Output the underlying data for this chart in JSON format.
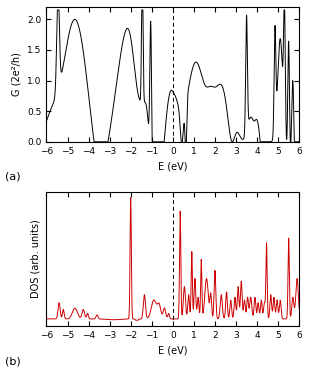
{
  "panel_a_label": "(a)",
  "panel_b_label": "(b)",
  "xlabel": "E (eV)",
  "ylabel_a": "G (2e²/h)",
  "ylabel_b": "DOS (arb. units)",
  "xlim": [
    -6,
    6
  ],
  "xticks": [
    -6,
    -5,
    -4,
    -3,
    -2,
    -1,
    0,
    1,
    2,
    3,
    4,
    5,
    6
  ],
  "yticks_a": [
    0,
    0.5,
    1,
    1.5,
    2
  ],
  "fermi_energy": 0.0,
  "color_a": "#000000",
  "color_b": "#cc0000",
  "linewidth_a": 0.7,
  "linewidth_b": 0.7,
  "figsize": [
    3.09,
    3.72
  ],
  "dpi": 100
}
